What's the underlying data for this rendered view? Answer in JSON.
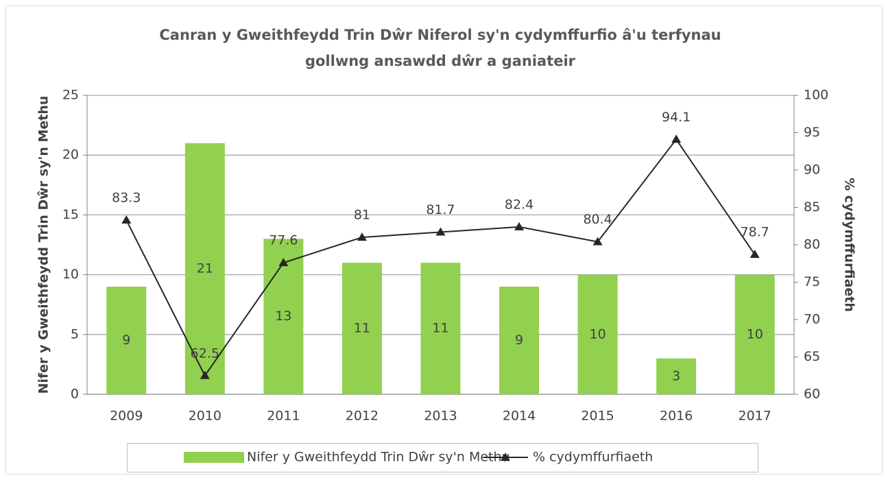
{
  "chart_data": {
    "type": "bar",
    "title": [
      "Canran y Gweithfeydd Trin Dŵr Niferol sy'n cydymffurfio â'u terfynau",
      "gollwng ansawdd dŵr a ganiateir"
    ],
    "y_label": "Nifer y Gweithfeydd Trin Dŵr sy'n Methu",
    "y2_label": "% cydymffurfiaeth",
    "categories": [
      "2009",
      "2010",
      "2011",
      "2012",
      "2013",
      "2014",
      "2015",
      "2016",
      "2017"
    ],
    "series": [
      {
        "name": "Nifer y Gweithfeydd Trin Dŵr sy'n Methu",
        "type": "bar",
        "color": "#92d050",
        "values": [
          9,
          21,
          13,
          11,
          11,
          9,
          10,
          3,
          10
        ]
      },
      {
        "name": "% cydymffurfiaeth",
        "type": "line",
        "axis": "y2",
        "color": "#262626",
        "values": [
          83.3,
          62.5,
          77.6,
          81,
          81.7,
          82.4,
          80.4,
          94.1,
          78.7
        ]
      }
    ],
    "ylim": [
      0,
      25
    ],
    "yticks": [
      0,
      5,
      10,
      15,
      20,
      25
    ],
    "y2lim": [
      60,
      100
    ],
    "y2ticks": [
      60,
      65,
      70,
      75,
      80,
      85,
      90,
      95,
      100
    ],
    "grid": true,
    "legend": "bottom"
  }
}
